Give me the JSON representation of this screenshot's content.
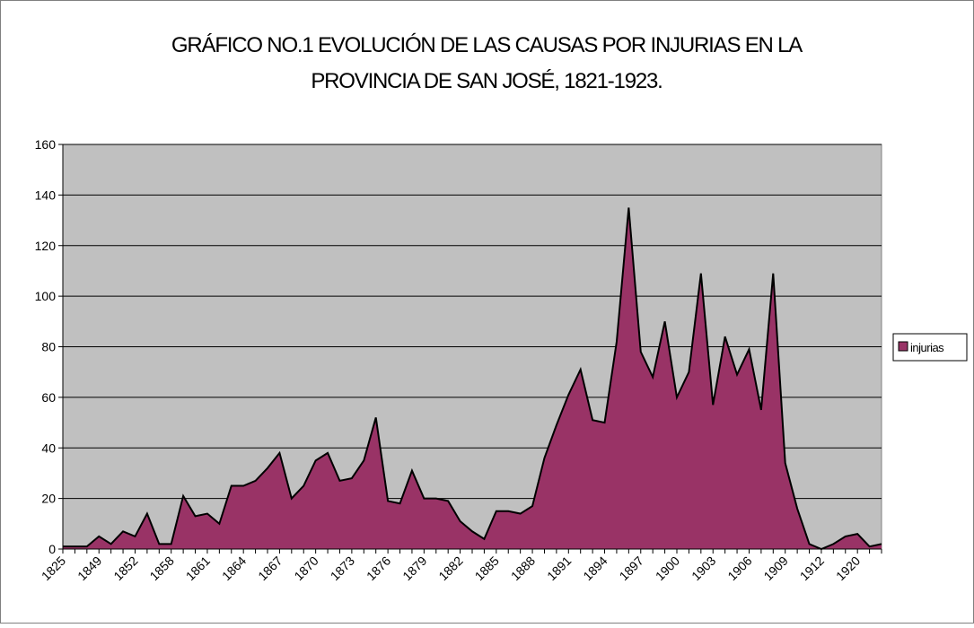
{
  "chart_data": {
    "type": "area",
    "title": [
      "GRÁFICO NO.1  EVOLUCIÓN  DE LAS CAUSAS POR INJURIAS EN LA",
      "PROVINCIA DE SAN JOSÉ, 1821-1923."
    ],
    "categories": [
      "1825",
      null,
      null,
      "1849",
      null,
      null,
      "1852",
      null,
      null,
      "1858",
      null,
      null,
      "1861",
      null,
      null,
      "1864",
      null,
      null,
      "1867",
      null,
      null,
      "1870",
      null,
      null,
      "1873",
      null,
      null,
      "1876",
      null,
      null,
      "1879",
      null,
      null,
      "1882",
      null,
      null,
      "1885",
      null,
      null,
      "1888",
      null,
      null,
      "1891",
      null,
      null,
      "1894",
      null,
      null,
      "1897",
      null,
      null,
      "1900",
      null,
      null,
      "1903",
      null,
      null,
      "1906",
      null,
      null,
      "1909",
      null,
      null,
      "1912",
      null,
      null,
      "1920",
      null,
      null
    ],
    "series": [
      {
        "name": "injurias",
        "color": "#993366",
        "values": [
          1,
          1,
          1,
          5,
          2,
          7,
          5,
          14,
          2,
          2,
          21,
          13,
          14,
          10,
          25,
          25,
          27,
          32,
          38,
          20,
          25,
          35,
          38,
          27,
          28,
          35,
          52,
          19,
          18,
          31,
          20,
          20,
          19,
          11,
          7,
          4,
          15,
          15,
          14,
          17,
          36,
          49,
          61,
          71,
          51,
          50,
          82,
          135,
          78,
          68,
          90,
          60,
          70,
          109,
          57,
          84,
          69,
          79,
          55,
          109,
          34,
          16,
          2,
          0,
          2,
          5,
          6,
          1,
          2
        ]
      }
    ],
    "ylim": [
      0,
      160
    ],
    "yticks": [
      0,
      20,
      40,
      60,
      80,
      100,
      120,
      140,
      160
    ],
    "grid": true,
    "legend": "right"
  }
}
